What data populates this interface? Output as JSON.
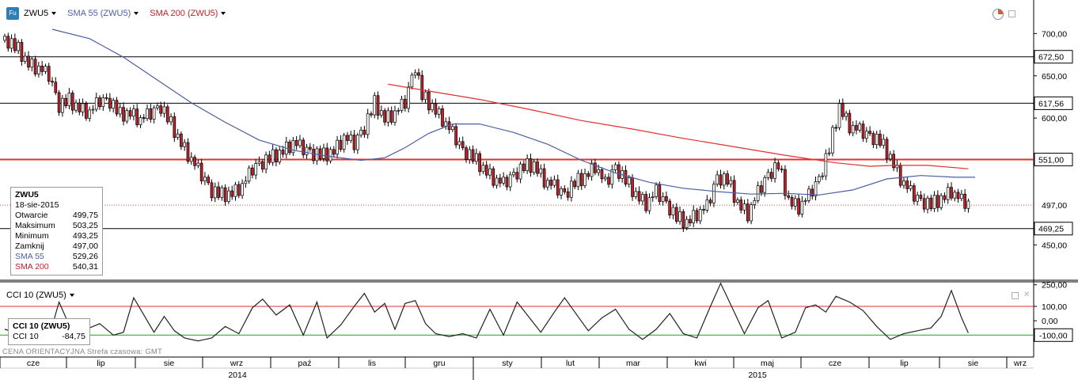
{
  "toolbar": {
    "symbol": "ZWU5",
    "logo_text": "Fu",
    "sma55_label": "SMA 55 (ZWU5)",
    "sma200_label": "SMA 200 (ZWU5)"
  },
  "info": {
    "symbol": "ZWU5",
    "date": "18-sie-2015",
    "rows": [
      {
        "label": "Otwarcie",
        "value": "499,75"
      },
      {
        "label": "Maksimum",
        "value": "503,25"
      },
      {
        "label": "Minimum",
        "value": "493,25"
      },
      {
        "label": "Zamknij",
        "value": "497,00"
      }
    ],
    "sma55": {
      "label": "SMA 55",
      "value": "529,26"
    },
    "sma200": {
      "label": "SMA 200",
      "value": "540,31"
    }
  },
  "cci": {
    "title": "CCI 10 (ZWU5)",
    "box_title": "CCI 10 (ZWU5)",
    "box_label": "CCI 10",
    "box_value": "-84,75"
  },
  "footer": {
    "text": "CENA ORIENTACYJNA   Strefa czasowa: GMT"
  },
  "colors": {
    "up_candle": "#ffffff",
    "down_candle": "#c0202a",
    "sma55": "#4a5fa3",
    "sma200": "#e03030",
    "level_line": "#000000",
    "red_level": "#e03030",
    "green_level": "#2a9a2a"
  },
  "chart_data": [
    {
      "type": "candlestick",
      "symbol": "ZWU5",
      "y_ticks": [
        "700,00",
        "650,00",
        "600,00",
        "450,00"
      ],
      "ylim": [
        410,
        735
      ],
      "horizontal_levels": [
        {
          "value": 672.5,
          "label": "672,50",
          "color": "#000000"
        },
        {
          "value": 617.56,
          "label": "617,56",
          "color": "#000000"
        },
        {
          "value": 551.0,
          "label": "551,00",
          "color": "#e03030"
        },
        {
          "value": 469.25,
          "label": "469,25",
          "color": "#000000"
        }
      ],
      "last_price": {
        "value": 497.0,
        "label": "497,00"
      },
      "close_series": [
        {
          "x": 0,
          "close": 692
        },
        {
          "x": 4,
          "close": 680
        },
        {
          "x": 7,
          "close": 665
        },
        {
          "x": 10,
          "close": 660
        },
        {
          "x": 13,
          "close": 650
        },
        {
          "x": 16,
          "close": 613
        },
        {
          "x": 19,
          "close": 620
        },
        {
          "x": 22,
          "close": 612
        },
        {
          "x": 25,
          "close": 608
        },
        {
          "x": 28,
          "close": 620
        },
        {
          "x": 31,
          "close": 618
        },
        {
          "x": 34,
          "close": 603
        },
        {
          "x": 37,
          "close": 607
        },
        {
          "x": 40,
          "close": 599
        },
        {
          "x": 43,
          "close": 605
        },
        {
          "x": 46,
          "close": 612
        },
        {
          "x": 49,
          "close": 592
        },
        {
          "x": 52,
          "close": 571
        },
        {
          "x": 55,
          "close": 552
        },
        {
          "x": 58,
          "close": 532
        },
        {
          "x": 61,
          "close": 512
        },
        {
          "x": 64,
          "close": 508
        },
        {
          "x": 67,
          "close": 512
        },
        {
          "x": 70,
          "close": 521
        },
        {
          "x": 73,
          "close": 539
        },
        {
          "x": 76,
          "close": 546
        },
        {
          "x": 79,
          "close": 553
        },
        {
          "x": 82,
          "close": 562
        },
        {
          "x": 85,
          "close": 572
        },
        {
          "x": 88,
          "close": 563
        },
        {
          "x": 91,
          "close": 556
        },
        {
          "x": 94,
          "close": 555
        },
        {
          "x": 97,
          "close": 562
        },
        {
          "x": 100,
          "close": 578
        },
        {
          "x": 103,
          "close": 569
        },
        {
          "x": 106,
          "close": 587
        },
        {
          "x": 109,
          "close": 617
        },
        {
          "x": 112,
          "close": 600
        },
        {
          "x": 115,
          "close": 607
        },
        {
          "x": 118,
          "close": 618
        },
        {
          "x": 121,
          "close": 660
        },
        {
          "x": 123,
          "close": 625
        },
        {
          "x": 126,
          "close": 614
        },
        {
          "x": 129,
          "close": 600
        },
        {
          "x": 132,
          "close": 582
        },
        {
          "x": 135,
          "close": 560
        },
        {
          "x": 138,
          "close": 552
        },
        {
          "x": 141,
          "close": 541
        },
        {
          "x": 144,
          "close": 530
        },
        {
          "x": 147,
          "close": 522
        },
        {
          "x": 150,
          "close": 531
        },
        {
          "x": 153,
          "close": 541
        },
        {
          "x": 156,
          "close": 545
        },
        {
          "x": 159,
          "close": 528
        },
        {
          "x": 162,
          "close": 519
        },
        {
          "x": 165,
          "close": 508
        },
        {
          "x": 168,
          "close": 522
        },
        {
          "x": 171,
          "close": 531
        },
        {
          "x": 174,
          "close": 545
        },
        {
          "x": 177,
          "close": 522
        },
        {
          "x": 180,
          "close": 540
        },
        {
          "x": 183,
          "close": 525
        },
        {
          "x": 186,
          "close": 510
        },
        {
          "x": 189,
          "close": 500
        },
        {
          "x": 192,
          "close": 513
        },
        {
          "x": 195,
          "close": 497
        },
        {
          "x": 198,
          "close": 481
        },
        {
          "x": 201,
          "close": 477
        },
        {
          "x": 204,
          "close": 488
        },
        {
          "x": 207,
          "close": 495
        },
        {
          "x": 210,
          "close": 528
        },
        {
          "x": 213,
          "close": 525
        },
        {
          "x": 216,
          "close": 500
        },
        {
          "x": 219,
          "close": 488
        },
        {
          "x": 222,
          "close": 512
        },
        {
          "x": 225,
          "close": 531
        },
        {
          "x": 228,
          "close": 543
        },
        {
          "x": 231,
          "close": 503
        },
        {
          "x": 234,
          "close": 496
        },
        {
          "x": 237,
          "close": 508
        },
        {
          "x": 240,
          "close": 526
        },
        {
          "x": 243,
          "close": 562
        },
        {
          "x": 246,
          "close": 614
        },
        {
          "x": 249,
          "close": 592
        },
        {
          "x": 252,
          "close": 585
        },
        {
          "x": 255,
          "close": 577
        },
        {
          "x": 258,
          "close": 571
        },
        {
          "x": 261,
          "close": 554
        },
        {
          "x": 264,
          "close": 530
        },
        {
          "x": 267,
          "close": 512
        },
        {
          "x": 270,
          "close": 500
        },
        {
          "x": 273,
          "close": 496
        },
        {
          "x": 276,
          "close": 505
        },
        {
          "x": 279,
          "close": 515
        },
        {
          "x": 282,
          "close": 502
        },
        {
          "x": 284,
          "close": 497
        }
      ],
      "sma55": [
        {
          "x": 14,
          "value": 705
        },
        {
          "x": 25,
          "value": 694
        },
        {
          "x": 35,
          "value": 672
        },
        {
          "x": 45,
          "value": 645
        },
        {
          "x": 55,
          "value": 618
        },
        {
          "x": 65,
          "value": 595
        },
        {
          "x": 75,
          "value": 574
        },
        {
          "x": 85,
          "value": 562
        },
        {
          "x": 95,
          "value": 555
        },
        {
          "x": 105,
          "value": 550
        },
        {
          "x": 112,
          "value": 553
        },
        {
          "x": 118,
          "value": 565
        },
        {
          "x": 125,
          "value": 582
        },
        {
          "x": 132,
          "value": 593
        },
        {
          "x": 140,
          "value": 593
        },
        {
          "x": 150,
          "value": 583
        },
        {
          "x": 160,
          "value": 569
        },
        {
          "x": 170,
          "value": 550
        },
        {
          "x": 180,
          "value": 535
        },
        {
          "x": 190,
          "value": 524
        },
        {
          "x": 200,
          "value": 517
        },
        {
          "x": 210,
          "value": 513
        },
        {
          "x": 220,
          "value": 510
        },
        {
          "x": 230,
          "value": 511
        },
        {
          "x": 240,
          "value": 509
        },
        {
          "x": 250,
          "value": 515
        },
        {
          "x": 260,
          "value": 528
        },
        {
          "x": 270,
          "value": 532
        },
        {
          "x": 280,
          "value": 530
        },
        {
          "x": 286,
          "value": 530
        }
      ],
      "sma200": [
        {
          "x": 113,
          "value": 640
        },
        {
          "x": 125,
          "value": 632
        },
        {
          "x": 140,
          "value": 622
        },
        {
          "x": 155,
          "value": 610
        },
        {
          "x": 170,
          "value": 597
        },
        {
          "x": 185,
          "value": 587
        },
        {
          "x": 200,
          "value": 576
        },
        {
          "x": 215,
          "value": 566
        },
        {
          "x": 230,
          "value": 556
        },
        {
          "x": 245,
          "value": 547
        },
        {
          "x": 255,
          "value": 543
        },
        {
          "x": 262,
          "value": 544
        },
        {
          "x": 272,
          "value": 544
        },
        {
          "x": 284,
          "value": 540
        }
      ]
    },
    {
      "type": "line",
      "name": "CCI 10 (ZWU5)",
      "y_ticks": [
        "250,00",
        "100,00",
        "0,00",
        "-100,00"
      ],
      "ylim": [
        -170,
        265
      ],
      "levels": [
        {
          "value": 100,
          "color": "#e03030"
        },
        {
          "value": -100,
          "color": "#2a9a2a"
        }
      ],
      "last_value": "-84,75",
      "values": [
        {
          "x": 0,
          "y": -60
        },
        {
          "x": 5,
          "y": -90
        },
        {
          "x": 10,
          "y": -40
        },
        {
          "x": 13,
          "y": -120
        },
        {
          "x": 16,
          "y": 130
        },
        {
          "x": 19,
          "y": -30
        },
        {
          "x": 22,
          "y": -60
        },
        {
          "x": 25,
          "y": -50
        },
        {
          "x": 28,
          "y": -20
        },
        {
          "x": 32,
          "y": -100
        },
        {
          "x": 35,
          "y": -80
        },
        {
          "x": 38,
          "y": 160
        },
        {
          "x": 41,
          "y": 40
        },
        {
          "x": 44,
          "y": -80
        },
        {
          "x": 47,
          "y": 30
        },
        {
          "x": 50,
          "y": -70
        },
        {
          "x": 53,
          "y": -120
        },
        {
          "x": 57,
          "y": -140
        },
        {
          "x": 61,
          "y": -120
        },
        {
          "x": 65,
          "y": -40
        },
        {
          "x": 69,
          "y": -90
        },
        {
          "x": 73,
          "y": 90
        },
        {
          "x": 76,
          "y": 150
        },
        {
          "x": 80,
          "y": 40
        },
        {
          "x": 84,
          "y": 110
        },
        {
          "x": 88,
          "y": -100
        },
        {
          "x": 92,
          "y": 130
        },
        {
          "x": 95,
          "y": -120
        },
        {
          "x": 99,
          "y": -30
        },
        {
          "x": 103,
          "y": 100
        },
        {
          "x": 106,
          "y": 190
        },
        {
          "x": 109,
          "y": 60
        },
        {
          "x": 112,
          "y": 120
        },
        {
          "x": 115,
          "y": -60
        },
        {
          "x": 118,
          "y": 120
        },
        {
          "x": 121,
          "y": 140
        },
        {
          "x": 124,
          "y": -20
        },
        {
          "x": 127,
          "y": -90
        },
        {
          "x": 131,
          "y": -110
        },
        {
          "x": 135,
          "y": -90
        },
        {
          "x": 139,
          "y": -120
        },
        {
          "x": 143,
          "y": 80
        },
        {
          "x": 147,
          "y": -100
        },
        {
          "x": 151,
          "y": 130
        },
        {
          "x": 154,
          "y": 40
        },
        {
          "x": 158,
          "y": -80
        },
        {
          "x": 162,
          "y": 60
        },
        {
          "x": 165,
          "y": 160
        },
        {
          "x": 168,
          "y": 60
        },
        {
          "x": 172,
          "y": -70
        },
        {
          "x": 176,
          "y": 20
        },
        {
          "x": 180,
          "y": 80
        },
        {
          "x": 184,
          "y": -60
        },
        {
          "x": 188,
          "y": -130
        },
        {
          "x": 192,
          "y": -60
        },
        {
          "x": 196,
          "y": 50
        },
        {
          "x": 200,
          "y": -90
        },
        {
          "x": 204,
          "y": -120
        },
        {
          "x": 208,
          "y": 100
        },
        {
          "x": 211,
          "y": 260
        },
        {
          "x": 214,
          "y": 110
        },
        {
          "x": 218,
          "y": -90
        },
        {
          "x": 222,
          "y": 90
        },
        {
          "x": 225,
          "y": 140
        },
        {
          "x": 229,
          "y": -120
        },
        {
          "x": 233,
          "y": -80
        },
        {
          "x": 236,
          "y": 90
        },
        {
          "x": 239,
          "y": 110
        },
        {
          "x": 242,
          "y": 60
        },
        {
          "x": 245,
          "y": 170
        },
        {
          "x": 249,
          "y": 130
        },
        {
          "x": 253,
          "y": 70
        },
        {
          "x": 257,
          "y": -40
        },
        {
          "x": 261,
          "y": -130
        },
        {
          "x": 265,
          "y": -90
        },
        {
          "x": 269,
          "y": -70
        },
        {
          "x": 273,
          "y": -50
        },
        {
          "x": 276,
          "y": 30
        },
        {
          "x": 279,
          "y": 210
        },
        {
          "x": 282,
          "y": 20
        },
        {
          "x": 284,
          "y": -85
        }
      ]
    }
  ],
  "time_axis": {
    "months": [
      "cze",
      "lip",
      "sie",
      "wrz",
      "paź",
      "lis",
      "gru",
      "sty",
      "lut",
      "mar",
      "kwi",
      "maj",
      "cze",
      "lip",
      "sie",
      "wrz"
    ],
    "years": [
      "2014",
      "2015"
    ]
  }
}
